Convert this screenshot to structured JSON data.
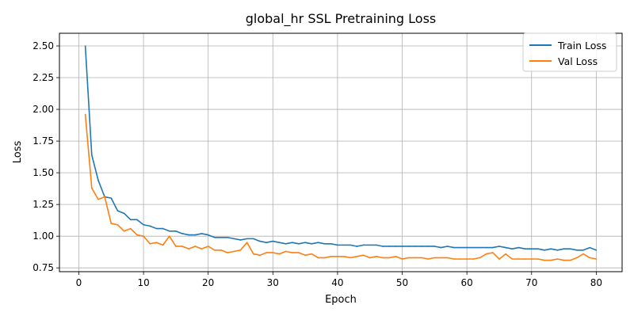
{
  "chart_data": {
    "type": "line",
    "title": "global_hr SSL Pretraining Loss",
    "xlabel": "Epoch",
    "ylabel": "Loss",
    "xlim": [
      -3,
      84
    ],
    "ylim": [
      0.72,
      2.6
    ],
    "xticks": [
      0,
      10,
      20,
      30,
      40,
      50,
      60,
      70,
      80
    ],
    "yticks": [
      0.75,
      1.0,
      1.25,
      1.5,
      1.75,
      2.0,
      2.25,
      2.5
    ],
    "ytick_labels": [
      "0.75",
      "1.00",
      "1.25",
      "1.50",
      "1.75",
      "2.00",
      "2.25",
      "2.50"
    ],
    "grid": true,
    "legend_position": "top-right",
    "x": [
      1,
      2,
      3,
      4,
      5,
      6,
      7,
      8,
      9,
      10,
      11,
      12,
      13,
      14,
      15,
      16,
      17,
      18,
      19,
      20,
      21,
      22,
      23,
      24,
      25,
      26,
      27,
      28,
      29,
      30,
      31,
      32,
      33,
      34,
      35,
      36,
      37,
      38,
      39,
      40,
      41,
      42,
      43,
      44,
      45,
      46,
      47,
      48,
      49,
      50,
      51,
      52,
      53,
      54,
      55,
      56,
      57,
      58,
      59,
      60,
      61,
      62,
      63,
      64,
      65,
      66,
      67,
      68,
      69,
      70,
      71,
      72,
      73,
      74,
      75,
      76,
      77,
      78,
      79,
      80
    ],
    "series": [
      {
        "name": "Train Loss",
        "color": "#1f77b4",
        "values": [
          2.5,
          1.64,
          1.44,
          1.31,
          1.3,
          1.2,
          1.18,
          1.13,
          1.13,
          1.09,
          1.08,
          1.06,
          1.06,
          1.04,
          1.04,
          1.02,
          1.01,
          1.01,
          1.02,
          1.01,
          0.99,
          0.99,
          0.99,
          0.98,
          0.97,
          0.98,
          0.98,
          0.96,
          0.95,
          0.96,
          0.95,
          0.94,
          0.95,
          0.94,
          0.95,
          0.94,
          0.95,
          0.94,
          0.94,
          0.93,
          0.93,
          0.93,
          0.92,
          0.93,
          0.93,
          0.93,
          0.92,
          0.92,
          0.92,
          0.92,
          0.92,
          0.92,
          0.92,
          0.92,
          0.92,
          0.91,
          0.92,
          0.91,
          0.91,
          0.91,
          0.91,
          0.91,
          0.91,
          0.91,
          0.92,
          0.91,
          0.9,
          0.91,
          0.9,
          0.9,
          0.9,
          0.89,
          0.9,
          0.89,
          0.9,
          0.9,
          0.89,
          0.89,
          0.91,
          0.89
        ]
      },
      {
        "name": "Val Loss",
        "color": "#ff7f0e",
        "values": [
          1.96,
          1.38,
          1.29,
          1.31,
          1.1,
          1.09,
          1.04,
          1.06,
          1.01,
          1.0,
          0.94,
          0.95,
          0.93,
          1.0,
          0.92,
          0.92,
          0.9,
          0.92,
          0.9,
          0.92,
          0.89,
          0.89,
          0.87,
          0.88,
          0.89,
          0.95,
          0.86,
          0.85,
          0.87,
          0.87,
          0.86,
          0.88,
          0.87,
          0.87,
          0.85,
          0.86,
          0.83,
          0.83,
          0.84,
          0.84,
          0.84,
          0.83,
          0.84,
          0.85,
          0.83,
          0.84,
          0.83,
          0.83,
          0.84,
          0.82,
          0.83,
          0.83,
          0.83,
          0.82,
          0.83,
          0.83,
          0.83,
          0.82,
          0.82,
          0.82,
          0.82,
          0.83,
          0.86,
          0.87,
          0.82,
          0.86,
          0.82,
          0.82,
          0.82,
          0.82,
          0.82,
          0.81,
          0.81,
          0.82,
          0.81,
          0.81,
          0.83,
          0.86,
          0.83,
          0.82
        ]
      }
    ]
  }
}
